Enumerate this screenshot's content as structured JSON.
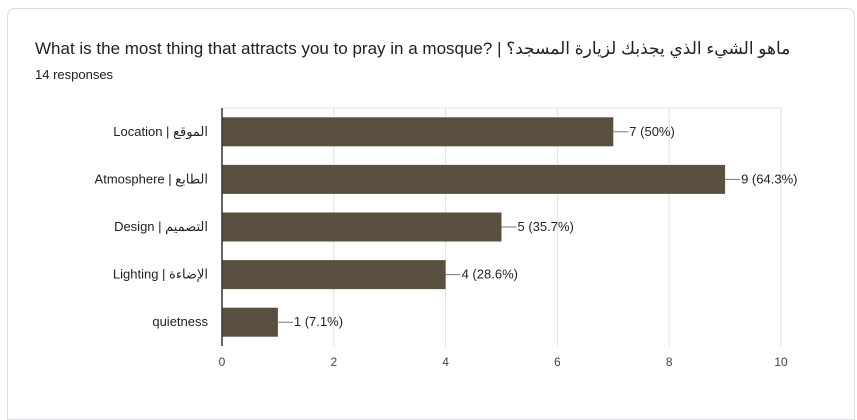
{
  "card": {
    "title": "What is the most thing that attracts you to pray in a mosque? | ماهو الشيء الذي يجذبك لزيارة المسجد؟",
    "responses": "14 responses"
  },
  "colors": {
    "bar": "#5a5041",
    "grid": "#e0e0e0",
    "axis": "#333333",
    "text": "#202124",
    "tick": "#444444"
  },
  "chart_data": {
    "type": "bar",
    "orientation": "horizontal",
    "categories": [
      "Location | الموقع",
      "Atmosphere | الطابع",
      "Design | التصميم",
      "Lighting | الإضاءة",
      "quietness"
    ],
    "values": [
      7,
      9,
      5,
      4,
      1
    ],
    "data_labels": [
      "7 (50%)",
      "9 (64.3%)",
      "5 (35.7%)",
      "4 (28.6%)",
      "1 (7.1%)"
    ],
    "xlim": [
      0,
      10
    ],
    "xticks": [
      0,
      2,
      4,
      6,
      8,
      10
    ],
    "grid": true,
    "legend": "none"
  }
}
